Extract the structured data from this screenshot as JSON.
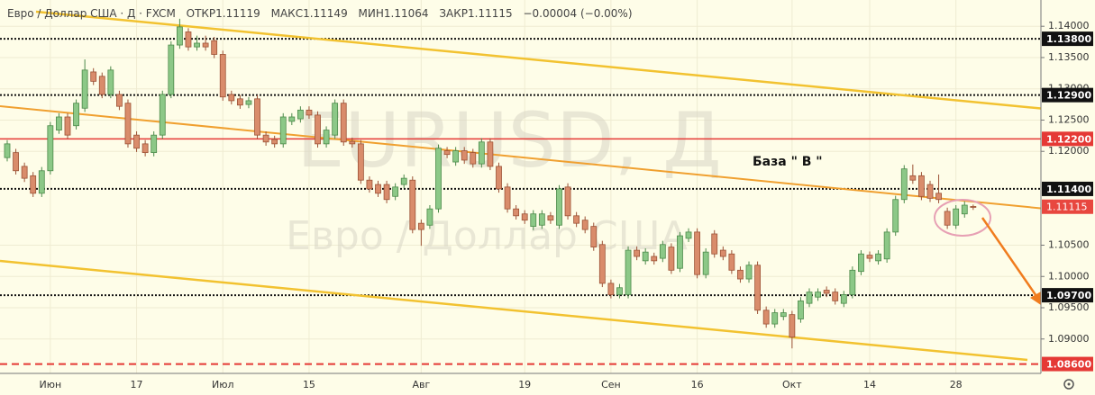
{
  "header": {
    "symbol": "Евро / Доллар США · Д · FXCM",
    "ohlc_labels": [
      "ОТКР",
      "МАКС",
      "МИН",
      "ЗАКР"
    ],
    "change": "−0.00004 (−0.00%)"
  },
  "watermark": {
    "ticker": "EURUSD, Д",
    "name": "Евро / Доллар США"
  },
  "chart_data": {
    "type": "candlestick",
    "annotation": "База  \" В \"",
    "up_color": "#8cc887",
    "down_color": "#d98c6b",
    "categories": [
      null,
      null,
      null,
      null,
      null,
      "Июн",
      null,
      null,
      null,
      null,
      null,
      null,
      null,
      null,
      null,
      "17",
      null,
      null,
      null,
      null,
      null,
      null,
      null,
      null,
      null,
      "Июл",
      null,
      null,
      null,
      null,
      null,
      null,
      null,
      null,
      null,
      "15",
      null,
      null,
      null,
      null,
      null,
      null,
      null,
      null,
      null,
      null,
      null,
      null,
      "Авг",
      null,
      null,
      null,
      null,
      null,
      null,
      null,
      null,
      null,
      null,
      null,
      "19",
      null,
      null,
      null,
      null,
      null,
      null,
      null,
      null,
      null,
      "Сен",
      null,
      null,
      null,
      null,
      null,
      null,
      null,
      null,
      null,
      "16",
      null,
      null,
      null,
      null,
      null,
      null,
      null,
      null,
      null,
      null,
      "Окт",
      null,
      null,
      null,
      null,
      null,
      null,
      null,
      null,
      "14",
      null,
      null,
      null,
      null,
      null,
      null,
      null,
      null,
      null,
      "28",
      null,
      null
    ],
    "open": [
      1.119,
      1.1198,
      1.1176,
      1.1161,
      1.1133,
      1.1169,
      1.1234,
      1.1255,
      1.1241,
      1.1269,
      1.1327,
      1.132,
      1.1291,
      1.1291,
      1.1277,
      1.1226,
      1.1212,
      1.1198,
      1.1226,
      1.1291,
      1.137,
      1.1391,
      1.1367,
      1.1373,
      1.1377,
      1.1355,
      1.1291,
      1.1284,
      1.1275,
      1.1284,
      1.1226,
      1.1219,
      1.1212,
      1.1248,
      1.1252,
      1.1266,
      1.1258,
      1.1212,
      1.1226,
      1.1277,
      1.1216,
      1.1212,
      1.1154,
      1.1147,
      1.1147,
      1.1128,
      1.1147,
      1.1154,
      1.1085,
      1.1082,
      1.1108,
      1.1201,
      1.1183,
      1.1201,
      1.1198,
      1.118,
      1.1215,
      1.1176,
      1.1143,
      1.1108,
      1.11,
      1.108,
      1.1082,
      1.1097,
      1.1082,
      1.1143,
      1.1097,
      1.109,
      1.108,
      1.1051,
      1.0989,
      1.0971,
      1.0971,
      1.1042,
      1.1025,
      1.1032,
      1.1029,
      1.1047,
      1.1013,
      1.1061,
      1.1071,
      1.1003,
      1.1068,
      1.1042,
      1.1036,
      1.101,
      1.0996,
      1.1018,
      1.0946,
      1.0924,
      1.0936,
      1.0939,
      1.0932,
      1.0957,
      1.0967,
      1.0978,
      1.0975,
      1.0957,
      1.0971,
      1.1008,
      1.1034,
      1.1025,
      1.1028,
      1.1071,
      1.1123,
      1.1161,
      1.1161,
      1.1147,
      1.1133,
      1.1104,
      1.1082,
      1.11,
      1.11119
    ],
    "high": [
      1.1218,
      1.1204,
      1.1182,
      1.1167,
      1.1175,
      1.1247,
      1.1261,
      1.1261,
      1.1283,
      1.1347,
      1.1333,
      1.1326,
      1.1336,
      1.1297,
      1.1283,
      1.1232,
      1.1218,
      1.1232,
      1.1297,
      1.1376,
      1.1412,
      1.1397,
      1.1385,
      1.1385,
      1.1383,
      1.1361,
      1.1297,
      1.129,
      1.1287,
      1.129,
      1.1232,
      1.1225,
      1.1261,
      1.1261,
      1.1272,
      1.1272,
      1.1264,
      1.124,
      1.1283,
      1.1283,
      1.1222,
      1.1218,
      1.116,
      1.1153,
      1.1153,
      1.1149,
      1.1163,
      1.116,
      1.1091,
      1.1114,
      1.1211,
      1.1207,
      1.1207,
      1.1207,
      1.1204,
      1.1221,
      1.1221,
      1.1182,
      1.1149,
      1.1114,
      1.1106,
      1.1106,
      1.1106,
      1.1103,
      1.1146,
      1.1149,
      1.1103,
      1.1096,
      1.1086,
      1.1057,
      1.0995,
      1.0988,
      1.1048,
      1.1048,
      1.1045,
      1.1038,
      1.1057,
      1.1053,
      1.1071,
      1.1077,
      1.1077,
      1.1045,
      1.1074,
      1.1048,
      1.1042,
      1.1016,
      1.1024,
      1.1024,
      1.0952,
      1.0948,
      1.0948,
      1.0945,
      1.0967,
      1.0981,
      1.0981,
      1.0984,
      1.0981,
      1.0977,
      1.1016,
      1.1042,
      1.104,
      1.1042,
      1.1077,
      1.1129,
      1.1178,
      1.1179,
      1.1167,
      1.1153,
      1.1163,
      1.111,
      1.1114,
      1.112,
      1.11149
    ],
    "low": [
      1.1184,
      1.1163,
      1.1151,
      1.1127,
      1.1127,
      1.1163,
      1.1228,
      1.122,
      1.1235,
      1.1263,
      1.1306,
      1.1285,
      1.1285,
      1.1266,
      1.1206,
      1.1199,
      1.1192,
      1.1192,
      1.122,
      1.1285,
      1.1364,
      1.1361,
      1.1361,
      1.1361,
      1.1349,
      1.1281,
      1.1275,
      1.1268,
      1.1269,
      1.122,
      1.1209,
      1.1206,
      1.1206,
      1.1242,
      1.1246,
      1.1252,
      1.1206,
      1.1206,
      1.122,
      1.1209,
      1.1206,
      1.1148,
      1.1134,
      1.1127,
      1.1117,
      1.1122,
      1.1141,
      1.1069,
      1.1049,
      1.1076,
      1.1102,
      1.1189,
      1.1177,
      1.118,
      1.1174,
      1.1174,
      1.117,
      1.1134,
      1.1102,
      1.1091,
      1.1084,
      1.1074,
      1.1076,
      1.1084,
      1.1076,
      1.1091,
      1.1079,
      1.1069,
      1.1041,
      1.0983,
      1.0965,
      1.0965,
      1.0965,
      1.1026,
      1.1019,
      1.1019,
      1.1023,
      1.1004,
      1.1007,
      1.1055,
      1.0997,
      1.0997,
      1.103,
      1.1026,
      1.1004,
      1.099,
      1.099,
      1.094,
      1.0918,
      1.0918,
      1.093,
      1.0885,
      1.0926,
      1.0951,
      1.0961,
      1.0967,
      1.0955,
      1.0951,
      1.0965,
      1.1002,
      1.1023,
      1.1019,
      1.1022,
      1.1065,
      1.1117,
      1.1148,
      1.1122,
      1.1119,
      1.1117,
      1.1076,
      1.1076,
      1.1094,
      1.11064
    ],
    "close": [
      1.1212,
      1.1169,
      1.1157,
      1.1133,
      1.1169,
      1.1241,
      1.1255,
      1.1226,
      1.1277,
      1.133,
      1.1312,
      1.1291,
      1.133,
      1.1272,
      1.1212,
      1.1205,
      1.1198,
      1.1226,
      1.1291,
      1.137,
      1.1399,
      1.1367,
      1.1373,
      1.1367,
      1.1355,
      1.1287,
      1.1281,
      1.1274,
      1.1281,
      1.1226,
      1.1215,
      1.1212,
      1.1255,
      1.1255,
      1.1266,
      1.1258,
      1.1212,
      1.1234,
      1.1277,
      1.1215,
      1.1212,
      1.1154,
      1.114,
      1.1133,
      1.1123,
      1.1143,
      1.1157,
      1.1075,
      1.1075,
      1.1108,
      1.1205,
      1.1195,
      1.1201,
      1.1186,
      1.118,
      1.1215,
      1.1176,
      1.114,
      1.1108,
      1.1097,
      1.109,
      1.11,
      1.11,
      1.109,
      1.114,
      1.1097,
      1.1085,
      1.1075,
      1.1047,
      1.0989,
      1.0971,
      1.0982,
      1.1042,
      1.1032,
      1.1039,
      1.1025,
      1.1051,
      1.101,
      1.1065,
      1.1071,
      1.1003,
      1.1039,
      1.1036,
      1.1032,
      1.101,
      1.0996,
      1.1018,
      1.0946,
      1.0924,
      1.0942,
      1.0942,
      1.0903,
      1.0961,
      1.0975,
      1.0975,
      1.0973,
      1.0961,
      1.0971,
      1.101,
      1.1036,
      1.1029,
      1.1036,
      1.1071,
      1.1123,
      1.1172,
      1.1154,
      1.1128,
      1.1125,
      1.1123,
      1.1082,
      1.1108,
      1.1114,
      1.11115
    ],
    "ylim": [
      1.0845,
      1.1442
    ],
    "yticks": [
      {
        "value": 1.14,
        "label": "1.14000"
      },
      {
        "value": 1.135,
        "label": "1.13500"
      },
      {
        "value": 1.13,
        "label": "1.13000"
      },
      {
        "value": 1.125,
        "label": "1.12500"
      },
      {
        "value": 1.12,
        "label": "1.12000"
      },
      {
        "value": 1.105,
        "label": "1.10500"
      },
      {
        "value": 1.1,
        "label": "1.10000"
      },
      {
        "value": 1.095,
        "label": "1.09500"
      },
      {
        "value": 1.09,
        "label": "1.09000"
      }
    ],
    "levels": [
      {
        "value": 1.138,
        "label": "1.13800",
        "color": "#111111",
        "style": "dotted"
      },
      {
        "value": 1.129,
        "label": "1.12900",
        "color": "#111111",
        "style": "dotted"
      },
      {
        "value": 1.122,
        "label": "1.12200",
        "color": "#e53935",
        "style": "solid"
      },
      {
        "value": 1.114,
        "label": "1.11400",
        "color": "#111111",
        "style": "dotted"
      },
      {
        "value": 1.097,
        "label": "1.09700",
        "color": "#111111",
        "style": "dotted"
      },
      {
        "value": 1.086,
        "label": "1.08600",
        "color": "#e53935",
        "style": "dashed"
      }
    ],
    "last_price_color": "#e8473f",
    "grid": true
  }
}
